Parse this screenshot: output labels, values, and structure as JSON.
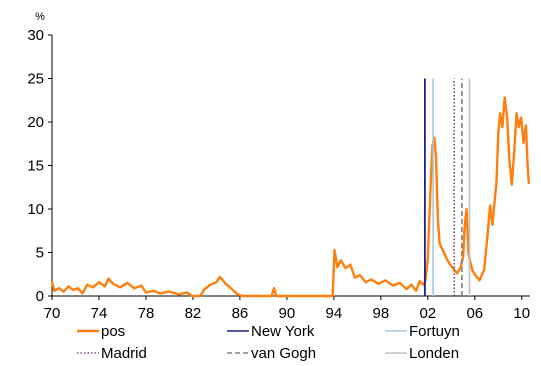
{
  "chart_data": {
    "type": "line",
    "title": "",
    "xlabel": "",
    "ylabel": "%",
    "xlim": [
      1970,
      2010.7
    ],
    "ylim": [
      0,
      30
    ],
    "grid": false,
    "legend_position": "bottom",
    "x_ticks": [
      "70",
      "74",
      "78",
      "82",
      "86",
      "90",
      "94",
      "98",
      "02",
      "06",
      "10"
    ],
    "x_tick_years": [
      1970,
      1974,
      1978,
      1982,
      1986,
      1990,
      1994,
      1998,
      2002,
      2006,
      2010
    ],
    "y_ticks": [
      "0",
      "5",
      "10",
      "15",
      "20",
      "25",
      "30"
    ],
    "y_tick_values": [
      0,
      5,
      10,
      15,
      20,
      25,
      30
    ],
    "series": [
      {
        "name": "pos",
        "color": "#FF7F0E",
        "style": "solid",
        "points": [
          [
            1970.0,
            1.6
          ],
          [
            1970.2,
            0.6
          ],
          [
            1970.6,
            0.9
          ],
          [
            1971.0,
            0.5
          ],
          [
            1971.4,
            1.1
          ],
          [
            1971.8,
            0.7
          ],
          [
            1972.2,
            0.9
          ],
          [
            1972.6,
            0.3
          ],
          [
            1973.0,
            1.3
          ],
          [
            1973.5,
            1.0
          ],
          [
            1974.0,
            1.6
          ],
          [
            1974.5,
            1.1
          ],
          [
            1974.8,
            2.0
          ],
          [
            1975.2,
            1.4
          ],
          [
            1975.8,
            1.0
          ],
          [
            1976.4,
            1.5
          ],
          [
            1977.0,
            0.9
          ],
          [
            1977.6,
            1.2
          ],
          [
            1978.0,
            0.4
          ],
          [
            1978.6,
            0.6
          ],
          [
            1979.2,
            0.3
          ],
          [
            1980.0,
            0.5
          ],
          [
            1980.8,
            0.2
          ],
          [
            1981.5,
            0.4
          ],
          [
            1981.9,
            0.0
          ],
          [
            1982.6,
            0.0
          ],
          [
            1983.0,
            0.8
          ],
          [
            1983.5,
            1.3
          ],
          [
            1984.0,
            1.6
          ],
          [
            1984.3,
            2.2
          ],
          [
            1984.8,
            1.4
          ],
          [
            1985.3,
            0.8
          ],
          [
            1985.8,
            0.2
          ],
          [
            1986.2,
            0.0
          ],
          [
            1988.7,
            0.0
          ],
          [
            1988.9,
            0.9
          ],
          [
            1989.1,
            0.0
          ],
          [
            1993.9,
            0.0
          ],
          [
            1994.05,
            5.3
          ],
          [
            1994.3,
            3.3
          ],
          [
            1994.6,
            4.1
          ],
          [
            1995.0,
            3.2
          ],
          [
            1995.4,
            3.6
          ],
          [
            1995.8,
            2.1
          ],
          [
            1996.2,
            2.4
          ],
          [
            1996.7,
            1.6
          ],
          [
            1997.2,
            1.9
          ],
          [
            1997.8,
            1.4
          ],
          [
            1998.4,
            1.8
          ],
          [
            1999.0,
            1.2
          ],
          [
            1999.6,
            1.5
          ],
          [
            2000.2,
            0.8
          ],
          [
            2000.6,
            1.3
          ],
          [
            2001.0,
            0.6
          ],
          [
            2001.3,
            1.7
          ],
          [
            2001.6,
            1.3
          ],
          [
            2001.8,
            1.8
          ],
          [
            2002.0,
            4.3
          ],
          [
            2002.2,
            11.5
          ],
          [
            2002.4,
            17.3
          ],
          [
            2002.55,
            18.2
          ],
          [
            2002.7,
            16.0
          ],
          [
            2002.85,
            9.0
          ],
          [
            2003.0,
            6.0
          ],
          [
            2003.3,
            5.2
          ],
          [
            2003.6,
            4.3
          ],
          [
            2003.9,
            3.6
          ],
          [
            2004.2,
            3.1
          ],
          [
            2004.5,
            2.6
          ],
          [
            2004.8,
            3.3
          ],
          [
            2005.0,
            4.5
          ],
          [
            2005.15,
            8.2
          ],
          [
            2005.3,
            10.0
          ],
          [
            2005.45,
            5.0
          ],
          [
            2005.6,
            4.0
          ],
          [
            2005.8,
            2.9
          ],
          [
            2006.1,
            2.3
          ],
          [
            2006.4,
            1.8
          ],
          [
            2006.8,
            3.0
          ],
          [
            2007.1,
            7.2
          ],
          [
            2007.3,
            10.4
          ],
          [
            2007.5,
            8.2
          ],
          [
            2007.7,
            11.1
          ],
          [
            2007.85,
            13.1
          ],
          [
            2008.0,
            18.8
          ],
          [
            2008.15,
            21.0
          ],
          [
            2008.35,
            19.4
          ],
          [
            2008.55,
            22.8
          ],
          [
            2008.75,
            20.6
          ],
          [
            2008.95,
            15.6
          ],
          [
            2009.15,
            12.8
          ],
          [
            2009.35,
            16.4
          ],
          [
            2009.55,
            21.0
          ],
          [
            2009.75,
            19.4
          ],
          [
            2009.95,
            20.5
          ],
          [
            2010.15,
            17.6
          ],
          [
            2010.35,
            19.6
          ],
          [
            2010.5,
            14.8
          ],
          [
            2010.6,
            13.0
          ]
        ]
      },
      {
        "name": "New York",
        "color": "#1F1F8C",
        "style": "solid",
        "event_year": 2001.75,
        "top": 25
      },
      {
        "name": "Fortuyn",
        "color": "#A9C6DC",
        "style": "solid",
        "event_year": 2002.45,
        "top": 25
      },
      {
        "name": "Madrid",
        "color": "#7E4A86",
        "style": "dotted",
        "event_year": 2004.25,
        "top": 25
      },
      {
        "name": "van Gogh",
        "color": "#808080",
        "style": "dashed",
        "event_year": 2004.9,
        "top": 25
      },
      {
        "name": "Londen",
        "color": "#C0C0C0",
        "style": "solid",
        "event_year": 2005.55,
        "top": 25
      }
    ]
  }
}
